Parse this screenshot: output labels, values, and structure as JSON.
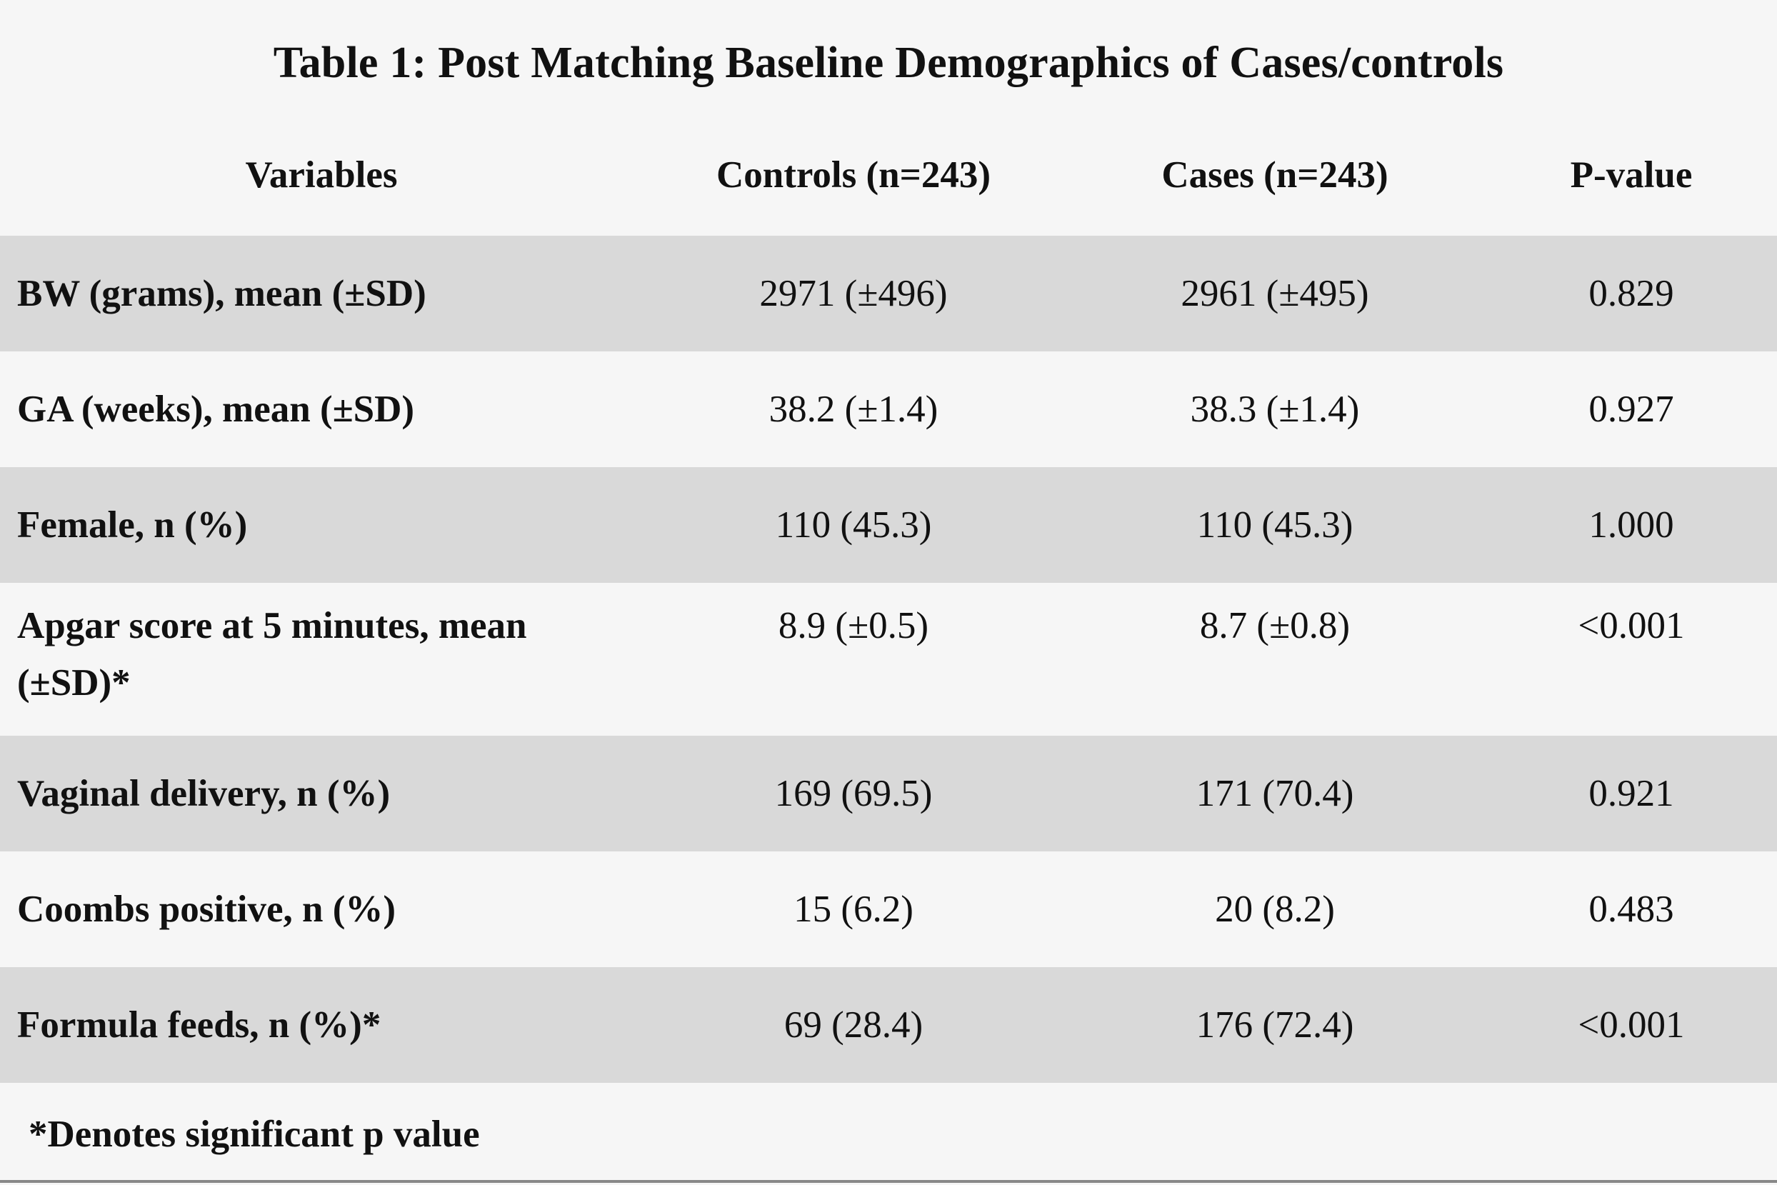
{
  "title": "Table 1: Post Matching Baseline Demographics of Cases/controls",
  "table": {
    "headers": [
      "Variables",
      "Controls (n=243)",
      "Cases (n=243)",
      "P-value"
    ],
    "rows": [
      [
        "BW (grams), mean (±SD)",
        "2971 (±496)",
        "2961 (±495)",
        "0.829"
      ],
      [
        "GA (weeks), mean (±SD)",
        "38.2 (±1.4)",
        "38.3 (±1.4)",
        "0.927"
      ],
      [
        "Female, n (%)",
        "110 (45.3)",
        "110 (45.3)",
        "1.000"
      ],
      [
        "Apgar score at 5 minutes, mean (±SD)*",
        "8.9 (±0.5)",
        "8.7 (±0.8)",
        "<0.001"
      ],
      [
        "Vaginal delivery, n (%)",
        "169 (69.5)",
        "171 (70.4)",
        "0.921"
      ],
      [
        "Coombs positive, n (%)",
        "15 (6.2)",
        "20 (8.2)",
        "0.483"
      ],
      [
        "Formula feeds, n (%)*",
        "69 (28.4)",
        "176 (72.4)",
        "<0.001"
      ]
    ]
  },
  "footnote": "*Denotes significant p value",
  "colors": {
    "background": "#f6f6f6",
    "row_shade": "#d9d9d9",
    "text": "#111111"
  }
}
